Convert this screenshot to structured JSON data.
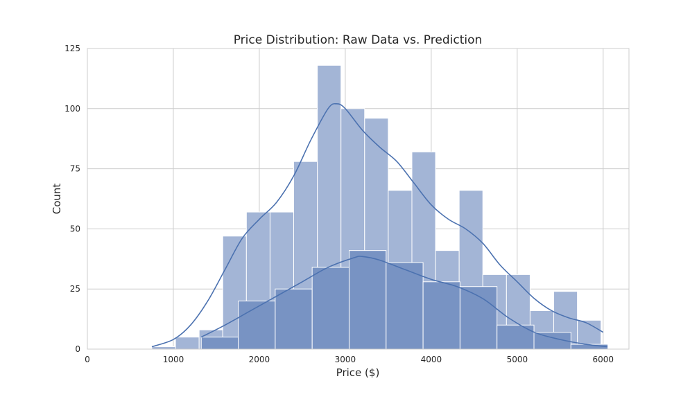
{
  "chart_data": {
    "type": "histogram",
    "title": "Price Distribution: Raw Data vs. Prediction",
    "xlabel": "Price ($)",
    "ylabel": "Count",
    "xlim": [
      0,
      6300
    ],
    "ylim": [
      0,
      125
    ],
    "x_ticks": [
      0,
      1000,
      2000,
      3000,
      4000,
      5000,
      6000
    ],
    "y_ticks": [
      0,
      25,
      50,
      75,
      100,
      125
    ],
    "grid": true,
    "colors": {
      "raw_bar": "#a3b5d6",
      "pred_bar": "#7893c3",
      "line": "#4c72b0",
      "grid": "#cccccc"
    },
    "series": [
      {
        "role": "raw",
        "bins": [
          {
            "x0": 750,
            "x1": 1025,
            "count": 1
          },
          {
            "x0": 1025,
            "x1": 1300,
            "count": 5
          },
          {
            "x0": 1300,
            "x1": 1575,
            "count": 8
          },
          {
            "x0": 1575,
            "x1": 1850,
            "count": 47
          },
          {
            "x0": 1850,
            "x1": 2125,
            "count": 57
          },
          {
            "x0": 2125,
            "x1": 2400,
            "count": 57
          },
          {
            "x0": 2400,
            "x1": 2675,
            "count": 78
          },
          {
            "x0": 2675,
            "x1": 2950,
            "count": 118
          },
          {
            "x0": 2950,
            "x1": 3225,
            "count": 100
          },
          {
            "x0": 3225,
            "x1": 3500,
            "count": 96
          },
          {
            "x0": 3500,
            "x1": 3775,
            "count": 66
          },
          {
            "x0": 3775,
            "x1": 4050,
            "count": 82
          },
          {
            "x0": 4050,
            "x1": 4325,
            "count": 41
          },
          {
            "x0": 4325,
            "x1": 4600,
            "count": 66
          },
          {
            "x0": 4600,
            "x1": 4875,
            "count": 31
          },
          {
            "x0": 4875,
            "x1": 5150,
            "count": 31
          },
          {
            "x0": 5150,
            "x1": 5425,
            "count": 16
          },
          {
            "x0": 5425,
            "x1": 5700,
            "count": 24
          },
          {
            "x0": 5700,
            "x1": 5975,
            "count": 12
          },
          {
            "x0": 5975,
            "x1": 6025,
            "count": 2
          }
        ],
        "kde": {
          "x": [
            750,
            1000,
            1200,
            1400,
            1600,
            1800,
            2000,
            2200,
            2400,
            2600,
            2800,
            2900,
            3000,
            3200,
            3400,
            3600,
            3800,
            4000,
            4200,
            4400,
            4600,
            4800,
            5000,
            5200,
            5400,
            5600,
            5800,
            6000
          ],
          "y": [
            1,
            4,
            10,
            20,
            33,
            46,
            54,
            61,
            72,
            87,
            100,
            102,
            100,
            91,
            84,
            78,
            69,
            60,
            54,
            50,
            44,
            35,
            28,
            21,
            16,
            13,
            11,
            7
          ]
        }
      },
      {
        "role": "prediction",
        "bins": [
          {
            "x0": 1325,
            "x1": 1755,
            "count": 5
          },
          {
            "x0": 1755,
            "x1": 2185,
            "count": 20
          },
          {
            "x0": 2185,
            "x1": 2615,
            "count": 25
          },
          {
            "x0": 2615,
            "x1": 3045,
            "count": 34
          },
          {
            "x0": 3045,
            "x1": 3475,
            "count": 41
          },
          {
            "x0": 3475,
            "x1": 3905,
            "count": 36
          },
          {
            "x0": 3905,
            "x1": 4335,
            "count": 28
          },
          {
            "x0": 4335,
            "x1": 4765,
            "count": 26
          },
          {
            "x0": 4765,
            "x1": 5195,
            "count": 10
          },
          {
            "x0": 5195,
            "x1": 5625,
            "count": 7
          },
          {
            "x0": 5625,
            "x1": 6055,
            "count": 2
          }
        ],
        "kde": {
          "x": [
            1325,
            1600,
            1900,
            2200,
            2500,
            2800,
            3100,
            3200,
            3400,
            3700,
            4000,
            4300,
            4600,
            4900,
            5200,
            5500,
            5800,
            6050
          ],
          "y": [
            5,
            10,
            16,
            22,
            28,
            34,
            38,
            38.5,
            37,
            33,
            29,
            26,
            21,
            13,
            7,
            4,
            2,
            1
          ]
        }
      }
    ]
  }
}
